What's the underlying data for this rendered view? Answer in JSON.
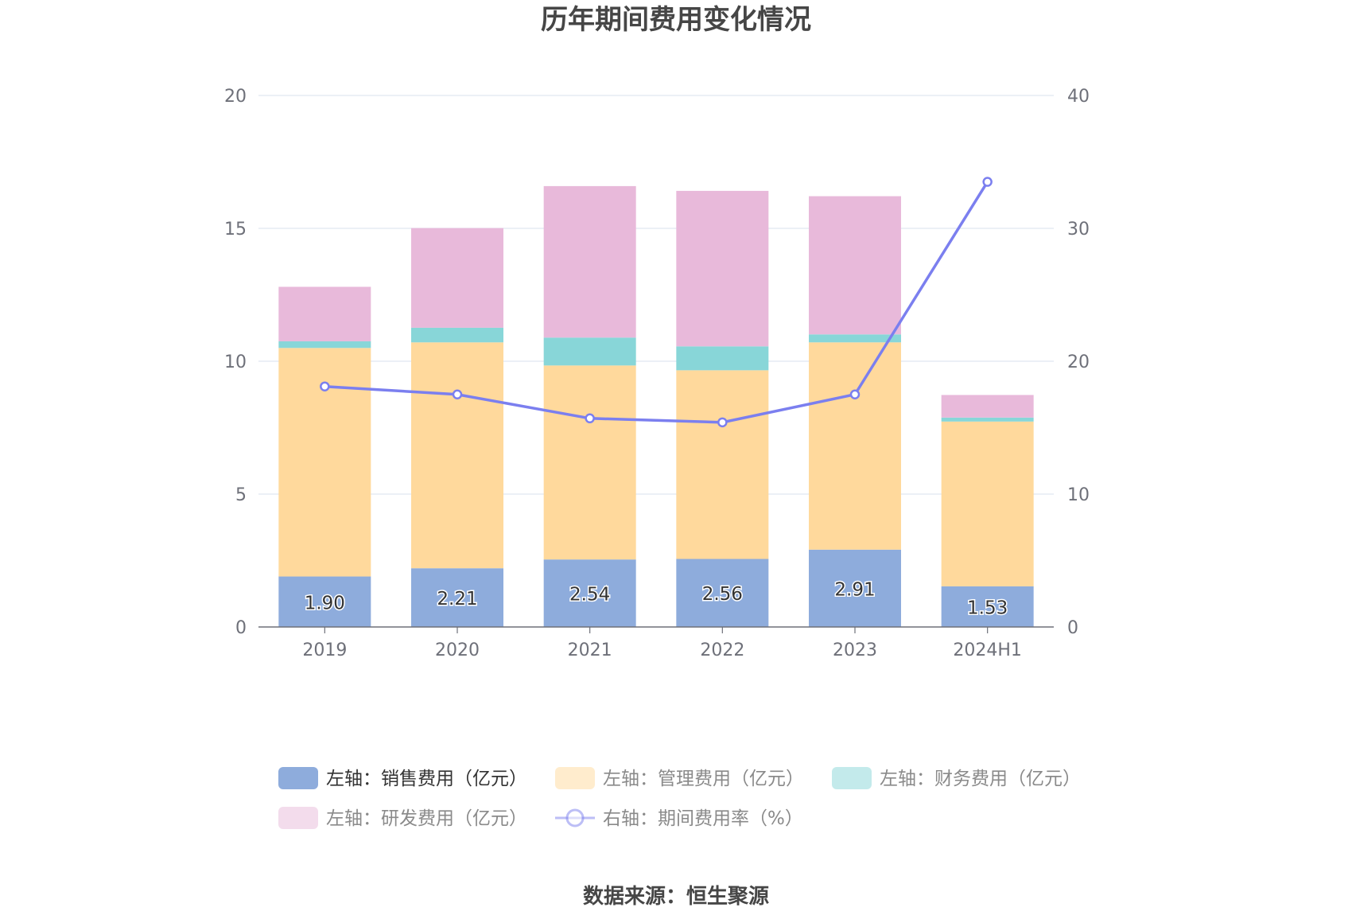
{
  "chart_data": {
    "type": "bar",
    "title": "历年期间费用变化情况",
    "source": "数据来源：恒生聚源",
    "categories": [
      "2019",
      "2020",
      "2021",
      "2022",
      "2023",
      "2024H1"
    ],
    "y_left": {
      "ylim": [
        0,
        20
      ],
      "ticks": [
        "0",
        "5",
        "10",
        "15",
        "20"
      ]
    },
    "y_right": {
      "ylim": [
        0,
        40
      ],
      "ticks": [
        "0",
        "10",
        "20",
        "30",
        "40"
      ]
    },
    "grid": true,
    "legend_position": "bottom",
    "series": [
      {
        "name": "左轴：销售费用（亿元）",
        "kind": "bar",
        "axis": "left",
        "color": "#8eacdc",
        "values": [
          1.9,
          2.21,
          2.54,
          2.56,
          2.91,
          1.53
        ],
        "labels": [
          "1.90",
          "2.21",
          "2.54",
          "2.56",
          "2.91",
          "1.53"
        ]
      },
      {
        "name": "左轴：管理费用（亿元）",
        "kind": "bar",
        "axis": "left",
        "color": "#ffd99c",
        "values": [
          8.6,
          8.5,
          7.3,
          7.1,
          7.8,
          6.2
        ]
      },
      {
        "name": "左轴：财务费用（亿元）",
        "kind": "bar",
        "axis": "left",
        "color": "#88d6d8",
        "values": [
          0.25,
          0.55,
          1.05,
          0.9,
          0.3,
          0.15
        ]
      },
      {
        "name": "左轴：研发费用（亿元）",
        "kind": "bar",
        "axis": "left",
        "color": "#e8b9da",
        "values": [
          2.05,
          3.75,
          5.7,
          5.85,
          5.2,
          0.85
        ]
      },
      {
        "name": "右轴：期间费用率（%）",
        "kind": "line",
        "axis": "right",
        "color": "#7b7fef",
        "values": [
          18.1,
          17.5,
          15.7,
          15.4,
          17.5,
          33.5
        ]
      }
    ]
  }
}
